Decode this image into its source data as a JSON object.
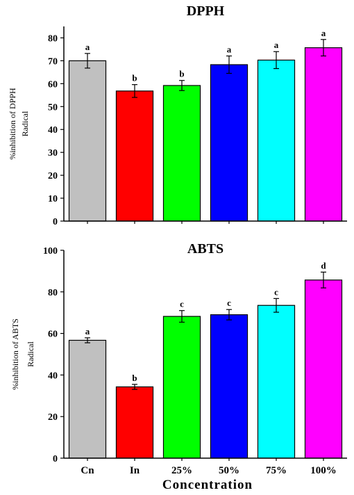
{
  "figure": {
    "xlabel": "Concentration"
  },
  "chart_data": [
    {
      "type": "bar",
      "title": "DPPH",
      "ylabel_line1": "%inhibition of DPPH",
      "ylabel_line2": "Radical",
      "xlabel": "",
      "categories": [
        "Cn",
        "In",
        "25%",
        "50%",
        "75%",
        "100%"
      ],
      "values": [
        70,
        56.8,
        59.2,
        68.3,
        70.3,
        75.7
      ],
      "errors": [
        3.2,
        2.8,
        2.2,
        3.8,
        3.7,
        3.6
      ],
      "letters": [
        "a",
        "b",
        "b",
        "a",
        "a",
        "a"
      ],
      "colors": [
        "#c0c0c0",
        "#ff0000",
        "#00ff00",
        "#0000ff",
        "#00ffff",
        "#ff00ff"
      ],
      "ylim": [
        0,
        85
      ],
      "yticks": [
        0,
        10,
        20,
        30,
        40,
        50,
        60,
        70,
        80
      ],
      "show_xticklabels": false,
      "grid": false
    },
    {
      "type": "bar",
      "title": "ABTS",
      "ylabel_line1": "%inhibition of ABTS",
      "ylabel_line2": "Radical",
      "xlabel": "Concentration",
      "categories": [
        "Cn",
        "In",
        "25%",
        "50%",
        "75%",
        "100%"
      ],
      "values": [
        56.7,
        34.3,
        68.2,
        69.0,
        73.5,
        85.7
      ],
      "errors": [
        1.2,
        1.2,
        2.8,
        2.5,
        3.3,
        3.8
      ],
      "letters": [
        "a",
        "b",
        "c",
        "c",
        "c",
        "d"
      ],
      "colors": [
        "#c0c0c0",
        "#ff0000",
        "#00ff00",
        "#0000ff",
        "#00ffff",
        "#ff00ff"
      ],
      "ylim": [
        0,
        100
      ],
      "yticks": [
        0,
        20,
        40,
        60,
        80,
        100
      ],
      "show_xticklabels": true,
      "grid": false
    }
  ]
}
